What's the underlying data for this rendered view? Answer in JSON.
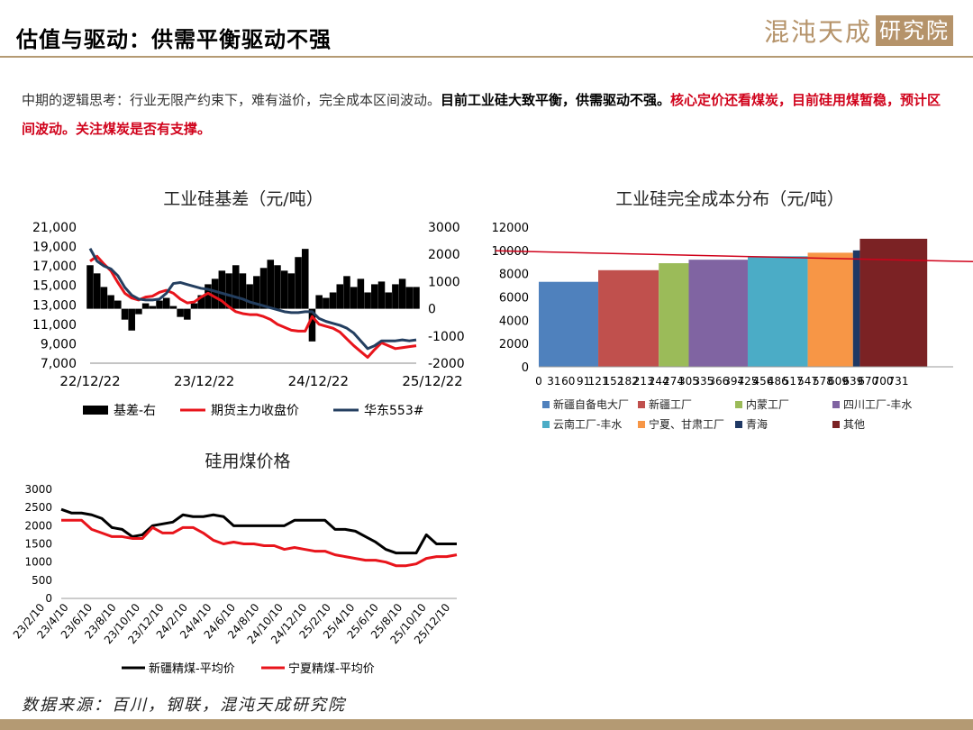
{
  "header": {
    "title": "估值与驱动：供需平衡驱动不强",
    "logo_text": "混沌天成",
    "logo_seal": "研究院"
  },
  "summary": {
    "part1": "中期的逻辑思考：行业无限产约束下，难有溢价，完全成本区间波动。",
    "part2": "目前工业硅大致平衡，供需驱动不强。",
    "part3": "核心定价还看煤炭，目前硅用煤暂稳，预计区间波动。关注煤炭是否有支撑。"
  },
  "footer": {
    "source": "数据来源：百川，钢联，混沌天成研究院"
  },
  "colors": {
    "accent": "#b49a73",
    "red": "#d0021b",
    "navy": "#243f60"
  },
  "chart_data": [
    {
      "type": "line",
      "title": "工业硅基差（元/吨）",
      "x_ticks": [
        "22/12/22",
        "23/12/22",
        "24/12/22",
        "25/12/22"
      ],
      "y_left": {
        "range": [
          7000,
          21000
        ],
        "ticks": [
          "7,000",
          "9,000",
          "11,000",
          "13,000",
          "15,000",
          "17,000",
          "19,000",
          "21,000"
        ]
      },
      "y_right": {
        "range": [
          -2000,
          3000
        ],
        "ticks": [
          "-2000",
          "-1000",
          "0",
          "1000",
          "2000",
          "3000"
        ]
      },
      "series": [
        {
          "name": "基差-右",
          "style": "area",
          "axis": "right",
          "color": "#000000",
          "values": [
            1600,
            1300,
            800,
            500,
            300,
            -400,
            -800,
            -200,
            200,
            100,
            300,
            400,
            100,
            -300,
            -400,
            200,
            500,
            900,
            1100,
            1400,
            1300,
            1600,
            1300,
            900,
            1200,
            1500,
            1800,
            1600,
            1400,
            1300,
            1900,
            2200,
            -1200,
            500,
            400,
            600,
            900,
            1200,
            800,
            1100,
            600,
            900,
            1000,
            600,
            900,
            1100,
            800,
            800
          ]
        },
        {
          "name": "期货主力收盘价",
          "style": "line",
          "axis": "left",
          "color": "#e8141b",
          "values": [
            17500,
            18000,
            17200,
            16500,
            15300,
            14200,
            13700,
            13500,
            13800,
            13900,
            14300,
            14500,
            14200,
            13600,
            13200,
            13300,
            13800,
            14200,
            13800,
            13400,
            12800,
            12300,
            12100,
            12000,
            12000,
            11800,
            11500,
            11000,
            10700,
            10400,
            10300,
            10300,
            11800,
            11000,
            10800,
            10600,
            10200,
            9500,
            8800,
            8200,
            7600,
            8400,
            9100,
            8800,
            8500,
            8600,
            8700,
            8800
          ]
        },
        {
          "name": "华东553#",
          "style": "line",
          "axis": "left",
          "color": "#243f60",
          "values": [
            18800,
            17500,
            17000,
            16700,
            16000,
            14800,
            14000,
            13600,
            13500,
            13500,
            13600,
            14200,
            15200,
            15300,
            15100,
            14900,
            14700,
            14600,
            14400,
            14200,
            14000,
            13800,
            13600,
            13300,
            13100,
            12900,
            12700,
            12500,
            12300,
            12200,
            12200,
            12300,
            12300,
            11600,
            11300,
            11100,
            10900,
            10600,
            10100,
            9300,
            8500,
            8800,
            9300,
            9300,
            9300,
            9400,
            9300,
            9400
          ]
        }
      ]
    },
    {
      "type": "bar",
      "title": "工业硅完全成本分布（元/吨）",
      "y_range": [
        0,
        12000
      ],
      "y_ticks": [
        "0",
        "2000",
        "4000",
        "6000",
        "8000",
        "10000",
        "12000"
      ],
      "x_ticks": [
        "0",
        "31",
        "60",
        "91",
        "121",
        "152",
        "182",
        "213",
        "244",
        "274",
        "305",
        "335",
        "366",
        "397",
        "425",
        "456",
        "486",
        "517",
        "547",
        "578",
        "609",
        "639",
        "670",
        "700",
        "731"
      ],
      "x_range": [
        0,
        731
      ],
      "reference_line": 9500,
      "segments": [
        {
          "name": "新疆自备电大厂",
          "from": 0,
          "to": 121,
          "value": 7300,
          "color": "#4f81bd"
        },
        {
          "name": "新疆工厂",
          "from": 121,
          "to": 244,
          "value": 8300,
          "color": "#c0504d"
        },
        {
          "name": "内蒙工厂",
          "from": 244,
          "to": 305,
          "value": 8900,
          "color": "#9bbb59"
        },
        {
          "name": "四川工厂-丰水",
          "from": 305,
          "to": 425,
          "value": 9200,
          "color": "#8064a2"
        },
        {
          "name": "云南工厂-丰水",
          "from": 425,
          "to": 547,
          "value": 9500,
          "color": "#4bacc6"
        },
        {
          "name": "宁夏、甘肃工厂",
          "from": 547,
          "to": 639,
          "value": 9800,
          "color": "#f79646"
        },
        {
          "name": "青海",
          "from": 639,
          "to": 653,
          "value": 10000,
          "color": "#1f3864"
        },
        {
          "name": "其他",
          "from": 653,
          "to": 790,
          "value": 11000,
          "color": "#7b2224"
        }
      ]
    },
    {
      "type": "line",
      "title": "硅用煤价格",
      "y_range": [
        0,
        3000
      ],
      "y_ticks": [
        "0",
        "500",
        "1000",
        "1500",
        "2000",
        "2500",
        "3000"
      ],
      "x_ticks": [
        "23/2/10",
        "23/4/10",
        "23/6/10",
        "23/8/10",
        "23/10/10",
        "23/12/10",
        "24/2/10",
        "24/4/10",
        "24/6/10",
        "24/8/10",
        "24/10/10",
        "24/12/10",
        "25/2/10",
        "25/4/10",
        "25/6/10",
        "25/8/10",
        "25/10/10",
        "25/12/10"
      ],
      "series": [
        {
          "name": "新疆精煤-平均价",
          "color": "#000000",
          "values": [
            2450,
            2350,
            2350,
            2300,
            2200,
            1950,
            1900,
            1700,
            1750,
            2000,
            2050,
            2100,
            2300,
            2250,
            2250,
            2300,
            2250,
            2000,
            2000,
            2000,
            2000,
            2000,
            2000,
            2150,
            2150,
            2150,
            2150,
            1900,
            1900,
            1850,
            1700,
            1550,
            1350,
            1250,
            1250,
            1250,
            1750,
            1500,
            1500,
            1500
          ]
        },
        {
          "name": "宁夏精煤-平均价",
          "color": "#e8141b",
          "values": [
            2150,
            2150,
            2150,
            1900,
            1800,
            1700,
            1700,
            1650,
            1650,
            1950,
            1800,
            1800,
            1950,
            1950,
            1800,
            1600,
            1500,
            1550,
            1500,
            1500,
            1450,
            1450,
            1350,
            1400,
            1350,
            1300,
            1300,
            1200,
            1150,
            1100,
            1050,
            1050,
            1000,
            900,
            900,
            950,
            1100,
            1150,
            1150,
            1200
          ]
        }
      ]
    }
  ]
}
